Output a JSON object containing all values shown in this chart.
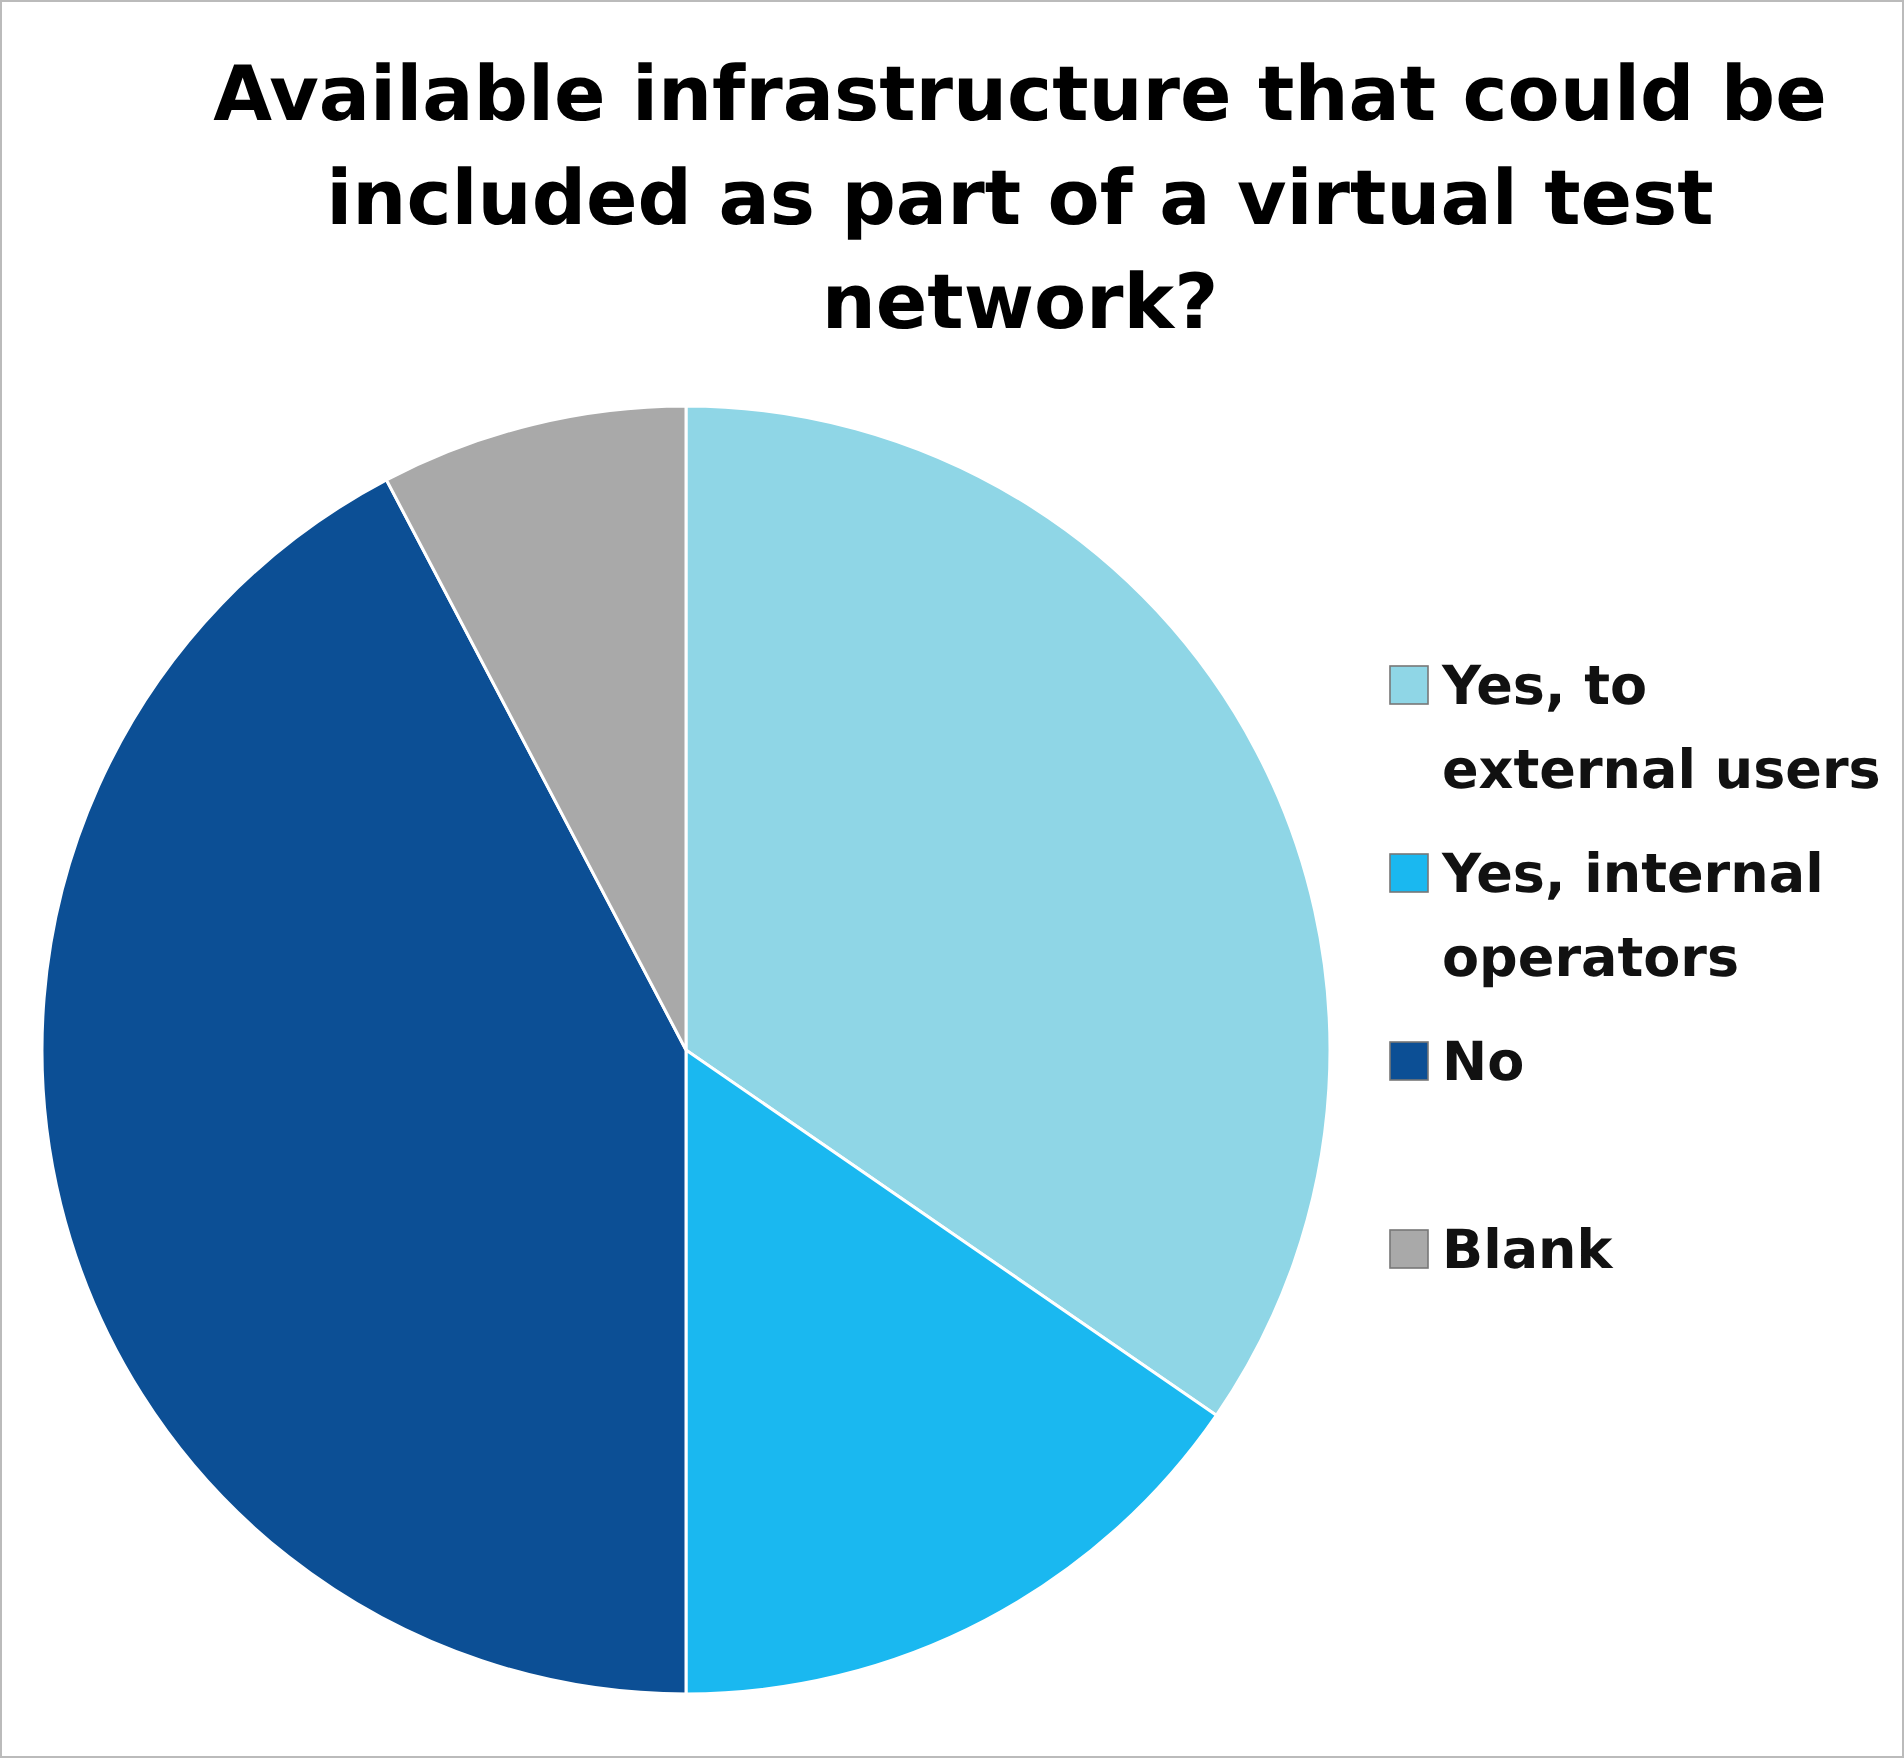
{
  "chart_data": {
    "type": "pie",
    "title": "Available infrastructure that could be included as part of a virtual test network?",
    "categories": [
      "Yes, to external users",
      "Yes, internal operators",
      "No",
      "Blank"
    ],
    "values": [
      34.6,
      15.4,
      42.3,
      7.7
    ],
    "colors": [
      "#8fd6e6",
      "#1ab8f0",
      "#0c4f95",
      "#a9a9a9"
    ],
    "legend": "right"
  }
}
